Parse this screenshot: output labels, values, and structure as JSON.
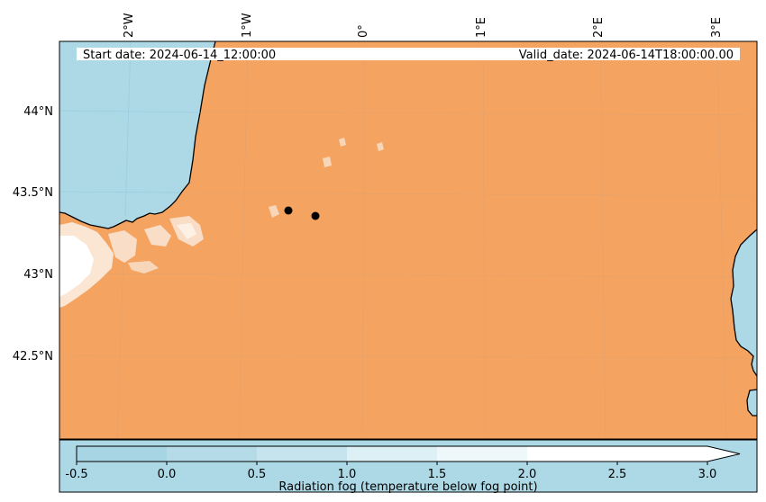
{
  "map": {
    "header": {
      "start_date": "Start date: 2024-06-14_12:00:00",
      "valid_date": "Valid_date: 2024-06-14T18:00:00.00"
    },
    "lon_labels": [
      "2°W",
      "1°W",
      "0°",
      "1°E",
      "2°E",
      "3°E"
    ],
    "lat_labels": [
      "44°N",
      "43.5°N",
      "43°N",
      "42.5°N"
    ],
    "colors": {
      "land": "#f4a460",
      "sea": "#add8e6",
      "coast": "#000000",
      "grid": "#cfcfcf",
      "fog": "#ffffff"
    },
    "markers": [
      {
        "name": "point-1"
      },
      {
        "name": "point-2"
      }
    ]
  },
  "colorbar": {
    "label": "Radiation fog (temperature below fog point)",
    "ticks": [
      "-0.5",
      "0.0",
      "0.5",
      "1.0",
      "1.5",
      "2.0",
      "2.5",
      "3.0"
    ],
    "colors": [
      "#add8e6",
      "#b8dee9",
      "#c6e4ee",
      "#dcf0f5",
      "#edf7fa",
      "#ffffff"
    ],
    "extend": "max"
  }
}
